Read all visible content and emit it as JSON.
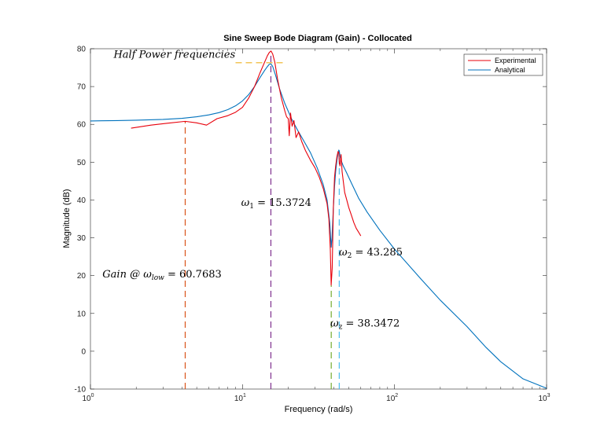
{
  "chart_data": {
    "type": "line",
    "title": "Sine Sweep Bode Diagram (Gain) - Collocated",
    "xlabel": "Frequency  (rad/s)",
    "ylabel": "Magnitude (dB)",
    "xscale": "log",
    "xlim": [
      1,
      1000
    ],
    "ylim": [
      -10,
      80
    ],
    "grid": false,
    "legend_position": "top-right",
    "x_ticks": [
      {
        "value": 1,
        "base": "10",
        "exp": "0"
      },
      {
        "value": 10,
        "base": "10",
        "exp": "1"
      },
      {
        "value": 100,
        "base": "10",
        "exp": "2"
      },
      {
        "value": 1000,
        "base": "10",
        "exp": "3"
      }
    ],
    "y_ticks": [
      -10,
      0,
      10,
      20,
      30,
      40,
      50,
      60,
      70,
      80
    ],
    "series": [
      {
        "name": "Experimental",
        "color": "#e8000b",
        "x": [
          1.85,
          2.5,
          3.2,
          4.2,
          5.0,
          5.8,
          6.8,
          8.0,
          9.0,
          10.0,
          11.0,
          12.0,
          13.0,
          14.0,
          14.6,
          15.0,
          15.4,
          15.8,
          16.3,
          17.0,
          18.0,
          19.0,
          19.5,
          20.0,
          20.3,
          20.7,
          21.2,
          21.8,
          22.5,
          23.4,
          24.5,
          26.0,
          28.0,
          30.0,
          32.0,
          34.0,
          36.0,
          37.0,
          37.8,
          38.3,
          38.9,
          39.6,
          40.3,
          41.0,
          41.8,
          42.5,
          43.0,
          43.3,
          43.8,
          44.5,
          45.2,
          46.0,
          47.0,
          48.5,
          50.0,
          52.0,
          54.0,
          56.0,
          58.0,
          60.0
        ],
        "y": [
          59.0,
          59.8,
          60.3,
          60.8,
          60.4,
          59.8,
          61.5,
          62.3,
          63.2,
          64.5,
          67.0,
          70.0,
          73.5,
          76.5,
          78.2,
          79.0,
          79.4,
          78.6,
          76.5,
          72.0,
          67.0,
          63.5,
          62.0,
          61.5,
          57.0,
          63.0,
          59.5,
          61.0,
          56.5,
          58.0,
          55.5,
          53.0,
          50.5,
          48.5,
          46.0,
          43.0,
          39.0,
          35.0,
          27.0,
          17.5,
          22.0,
          38.0,
          46.0,
          49.0,
          51.5,
          52.8,
          52.5,
          50.0,
          49.0,
          52.0,
          47.5,
          45.0,
          42.0,
          40.0,
          38.0,
          36.0,
          34.0,
          32.5,
          31.5,
          30.5
        ]
      },
      {
        "name": "Analytical",
        "color": "#0072bd",
        "x": [
          1,
          1.5,
          2,
          3,
          4,
          5,
          6,
          7,
          8,
          9,
          10,
          11,
          12,
          13,
          14,
          14.6,
          15.0,
          15.37,
          15.8,
          16.5,
          17.5,
          19,
          21,
          23,
          25,
          28,
          31,
          34,
          36,
          37.5,
          38.3,
          38.8,
          39.5,
          40.3,
          41.0,
          41.8,
          42.5,
          43.0,
          43.3,
          43.8,
          44.5,
          46,
          48,
          52,
          58,
          66,
          80,
          100,
          150,
          200,
          300,
          400,
          500,
          700,
          1000
        ],
        "y": [
          60.9,
          61.0,
          61.1,
          61.3,
          61.6,
          62.0,
          62.5,
          63.1,
          63.9,
          64.9,
          66.2,
          67.9,
          70.0,
          72.3,
          74.3,
          75.3,
          75.9,
          76.0,
          75.3,
          73.0,
          69.5,
          65.5,
          61.5,
          58.5,
          56.0,
          52.5,
          48.5,
          44.0,
          40.0,
          34.0,
          27.5,
          30.0,
          37.0,
          43.5,
          47.5,
          50.5,
          52.5,
          53.2,
          53.0,
          51.5,
          50.5,
          49.0,
          47.5,
          44.5,
          40.5,
          36.8,
          32.0,
          27.0,
          19.0,
          13.5,
          6.5,
          1.0,
          -2.8,
          -7.3,
          -9.8
        ]
      }
    ],
    "reference_lines": [
      {
        "name": "gain-low-line",
        "x": 4.2,
        "y_top": 60.7683,
        "color": "#d95319"
      },
      {
        "name": "omega1-line",
        "x": 15.3724,
        "y_top": 79.4,
        "color": "#7e2f8e"
      },
      {
        "name": "omega-z-line",
        "x": 38.3472,
        "y_top": 17.5,
        "color": "#77ac30"
      },
      {
        "name": "omega2-line",
        "x": 43.285,
        "y_top": 52.8,
        "color": "#4dbeee"
      }
    ],
    "half_power_line": {
      "x1": 9.0,
      "x2": 19.5,
      "y": 76.3,
      "color": "#edb120"
    },
    "annotations": {
      "half_power": {
        "text": "Half Power frequencies",
        "x": 1.42,
        "y": 77.6
      },
      "omega1": {
        "symbol": "ω",
        "sub": "1",
        "eq": " = ",
        "value": "15.3724",
        "x": 9.8,
        "y": 38.4
      },
      "omega2": {
        "symbol": "ω",
        "sub": "2",
        "eq": " = ",
        "value": "43.285",
        "x": 43.1,
        "y": 25.3
      },
      "omega_z": {
        "symbol": "ω",
        "sub": "z",
        "eq": " = ",
        "value": "38.3472",
        "x": 37.8,
        "y": 6.5
      },
      "gain_low": {
        "label": "Gain @ ω",
        "sub": "low",
        "eq": " = ",
        "value": "60.7683",
        "x": 1.2,
        "y": 19.5
      }
    }
  }
}
